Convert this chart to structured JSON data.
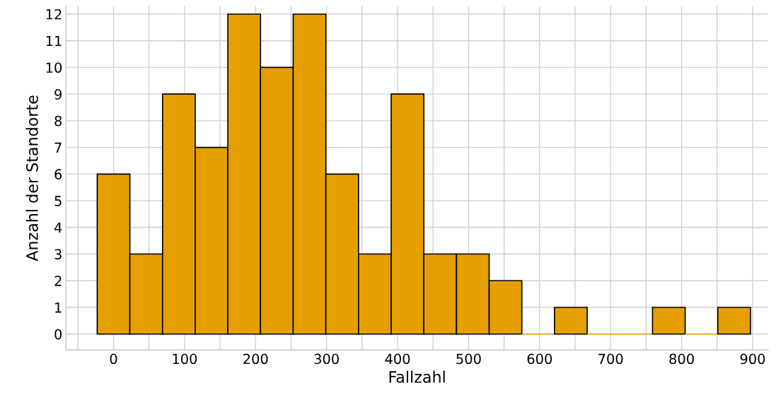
{
  "chart_data": {
    "type": "histogram",
    "xlabel": "Fallzahl",
    "ylabel": "Anzahl der Standorte",
    "bins": [
      -23,
      23,
      69,
      115,
      161,
      207,
      253,
      299,
      345,
      391,
      437,
      483,
      529,
      575,
      621,
      667,
      713,
      759,
      805,
      851,
      897
    ],
    "values": [
      6,
      3,
      9,
      7,
      12,
      10,
      12,
      6,
      3,
      9,
      3,
      3,
      2,
      0,
      1,
      0,
      0,
      1,
      0,
      1
    ],
    "color": "#e5a000",
    "xlim": [
      -67,
      922
    ],
    "ylim": [
      -0.6,
      12.3
    ],
    "xticks": [
      {
        "value": -50,
        "label": null
      },
      0,
      {
        "value": 50,
        "label": null
      },
      100,
      {
        "value": 150,
        "label": null
      },
      200,
      {
        "value": 250,
        "label": null
      },
      300,
      {
        "value": 350,
        "label": null
      },
      400,
      {
        "value": 450,
        "label": null
      },
      500,
      {
        "value": 550,
        "label": null
      },
      600,
      {
        "value": 650,
        "label": null
      },
      700,
      {
        "value": 750,
        "label": null
      },
      800,
      {
        "value": 850,
        "label": null
      },
      900
    ],
    "yticks": [
      0,
      1,
      2,
      3,
      4,
      5,
      6,
      7,
      8,
      9,
      10,
      11,
      12
    ],
    "grid": true
  }
}
